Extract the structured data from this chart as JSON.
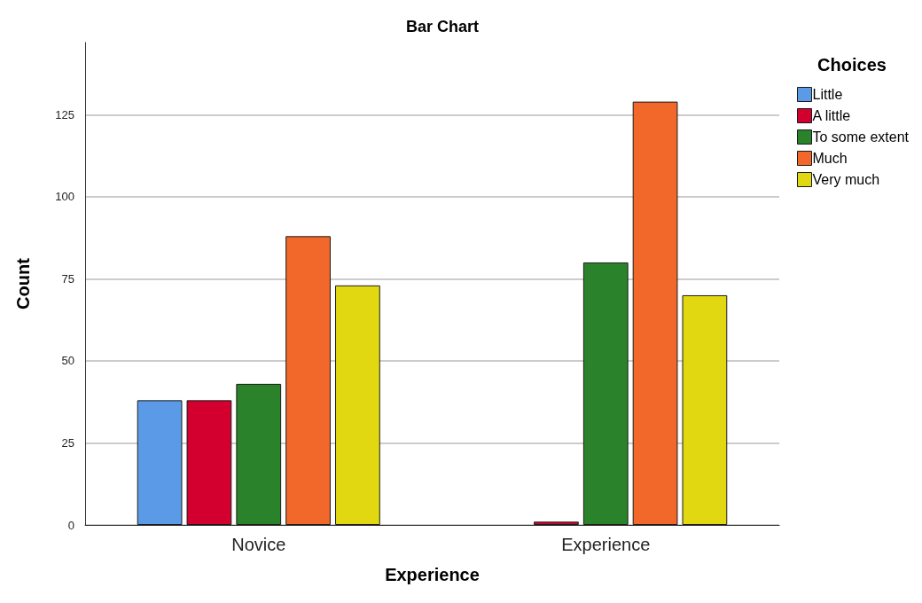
{
  "chart_data": {
    "type": "bar",
    "title": "Bar Chart",
    "xlabel": "Experience",
    "ylabel": "Count",
    "legend_title": "Choices",
    "categories": [
      "Novice",
      "Experience"
    ],
    "series": [
      {
        "name": "Little",
        "color": "#5a9ae6",
        "values": [
          38,
          null
        ]
      },
      {
        "name": "A little",
        "color": "#d3002f",
        "values": [
          38,
          1
        ]
      },
      {
        "name": "To some extent",
        "color": "#2a832a",
        "values": [
          43,
          80
        ]
      },
      {
        "name": "Much",
        "color": "#f2682b",
        "values": [
          88,
          129
        ]
      },
      {
        "name": "Very much",
        "color": "#e2d812",
        "values": [
          73,
          70
        ]
      }
    ],
    "ylim": [
      0,
      147
    ],
    "yticks": [
      0,
      25,
      50,
      75,
      100,
      125
    ],
    "grid": "y",
    "legend": "top right"
  }
}
